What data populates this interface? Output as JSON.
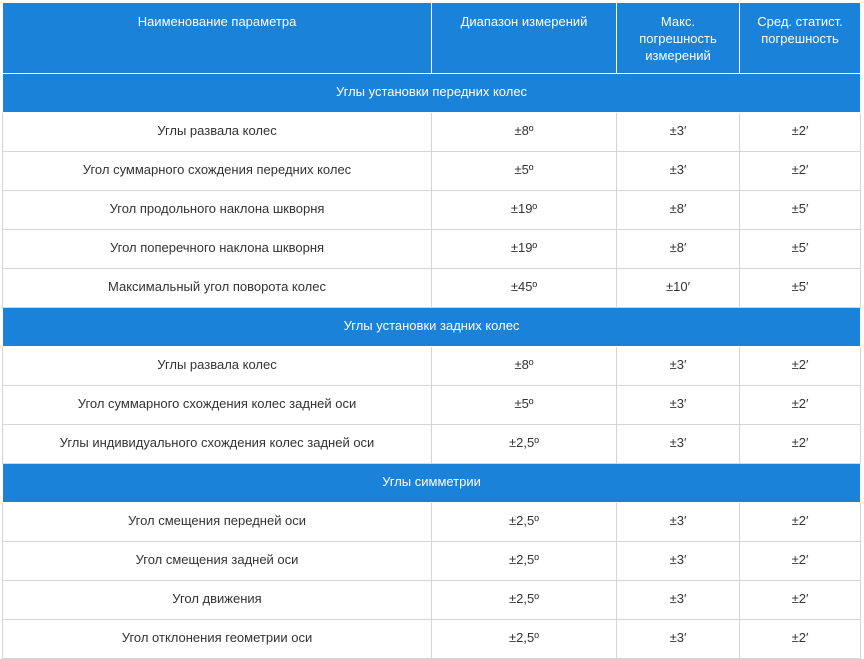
{
  "table": {
    "header": [
      "Наименование параметра",
      "Диапазон измерений",
      "Макс. погрешность измерений",
      "Сред. статист. погрешность"
    ],
    "sections": [
      {
        "title": "Углы установки передних колес",
        "rows": [
          [
            "Углы развала колес",
            "±8º",
            "±3′",
            "±2′"
          ],
          [
            "Угол суммарного схождения передних колес",
            "±5º",
            "±3′",
            "±2′"
          ],
          [
            "Угол продольного наклона шкворня",
            "±19º",
            "±8′",
            "±5′"
          ],
          [
            "Угол поперечного наклона шкворня",
            "±19º",
            "±8′",
            "±5′"
          ],
          [
            "Максимальный угол поворота колес",
            "±45º",
            "±10′",
            "±5′"
          ]
        ]
      },
      {
        "title": "Углы установки задних колес",
        "rows": [
          [
            "Углы развала колес",
            "±8º",
            "±3′",
            "±2′"
          ],
          [
            "Угол суммарного схождения колес задней оси",
            "±5º",
            "±3′",
            "±2′"
          ],
          [
            "Углы индивидуального схождения колес задней оси",
            "±2,5º",
            "±3′",
            "±2′"
          ]
        ]
      },
      {
        "title": "Углы симметрии",
        "rows": [
          [
            "Угол смещения передней оси",
            "±2,5º",
            "±3′",
            "±2′"
          ],
          [
            "Угол смещения задней оси",
            "±2,5º",
            "±3′",
            "±2′"
          ],
          [
            "Угол движения",
            "±2,5º",
            "±3′",
            "±2′"
          ],
          [
            "Угол отклонения геометрии оси",
            "±2,5º",
            "±3′",
            "±2′"
          ]
        ]
      }
    ]
  }
}
